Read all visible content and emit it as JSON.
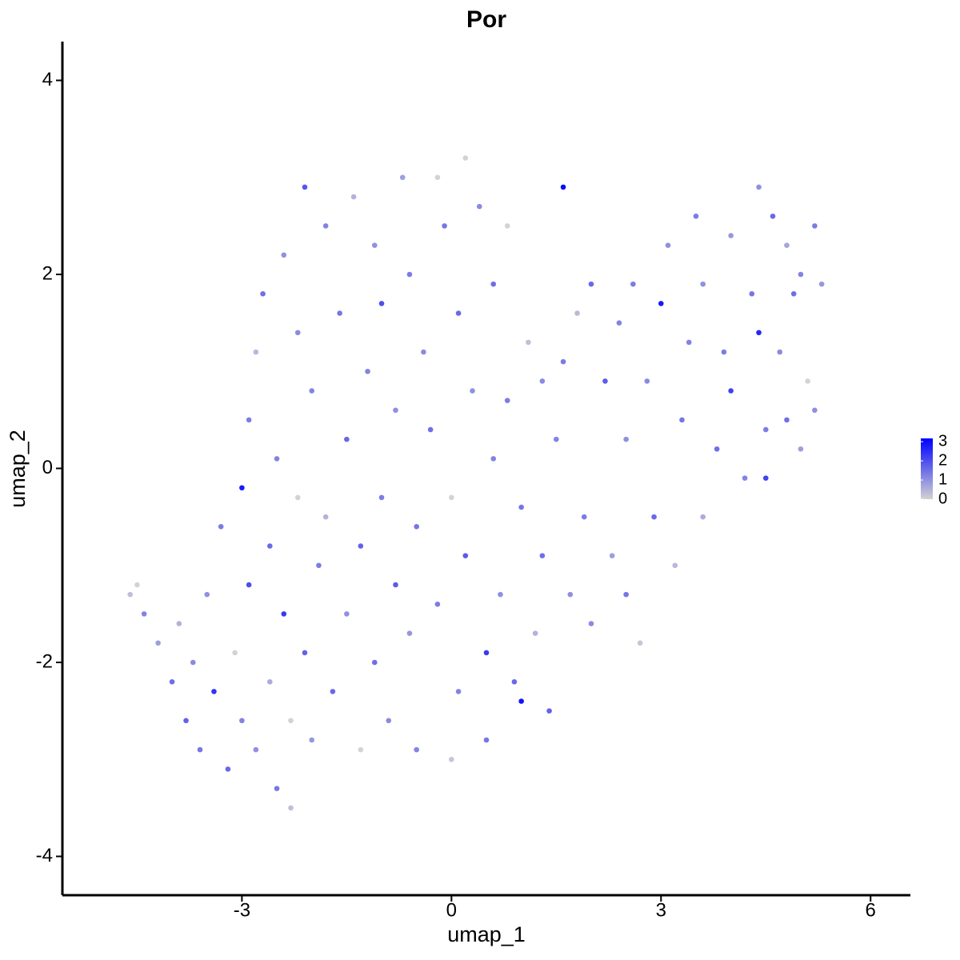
{
  "chart_data": {
    "type": "scatter",
    "title": "Por",
    "x_label": "umap_1",
    "y_label": "umap_2",
    "xlim": [
      -5.57,
      6.57
    ],
    "xticks": [
      -3,
      0,
      3,
      6
    ],
    "ylim": [
      -4.4,
      4.4
    ],
    "yticks": [
      -4,
      -2,
      0,
      2,
      4
    ],
    "color_low": "#d3d3d3",
    "color_high": "#0000ff",
    "colorlim": [
      0,
      3.17
    ],
    "colorticks": [
      0,
      1,
      2,
      3
    ],
    "series": [
      {
        "x": [
          -4.6,
          -4.5,
          -4.4,
          -4.2,
          -4.0,
          -3.9,
          -3.8,
          -3.7,
          -3.6,
          -3.5,
          -3.4,
          -3.3,
          -3.2,
          -3.1,
          -3.0,
          -3.0,
          -2.9,
          -2.9,
          -2.8,
          -2.8,
          -2.7,
          -2.6,
          -2.6,
          -2.5,
          -2.5,
          -2.4,
          -2.4,
          -2.3,
          -2.3,
          -2.2,
          -2.2,
          -2.1,
          -2.1,
          -2.0,
          -2.0,
          -1.9,
          -1.8,
          -1.8,
          -1.7,
          -1.6,
          -1.5,
          -1.5,
          -1.4,
          -1.3,
          -1.3,
          -1.2,
          -1.1,
          -1.1,
          -1.0,
          -1.0,
          -0.9,
          -0.8,
          -0.8,
          -0.7,
          -0.6,
          -0.6,
          -0.5,
          -0.5,
          -0.4,
          -0.3,
          -0.2,
          -0.2,
          -0.1,
          0.0,
          0.0,
          0.1,
          0.1,
          0.2,
          0.2,
          0.3,
          0.4,
          0.5,
          0.5,
          0.6,
          0.6,
          0.7,
          0.8,
          0.8,
          0.9,
          1.0,
          1.0,
          1.1,
          1.2,
          1.3,
          1.3,
          1.4,
          1.5,
          1.6,
          1.6,
          1.7,
          1.8,
          1.9,
          2.0,
          2.0,
          2.2,
          2.3,
          2.4,
          2.5,
          2.5,
          2.6,
          2.7,
          2.8,
          2.9,
          3.0,
          3.1,
          3.2,
          3.3,
          3.4,
          3.5,
          3.6,
          3.6,
          3.8,
          3.9,
          4.0,
          4.0,
          4.2,
          4.3,
          4.4,
          4.4,
          4.5,
          4.5,
          4.6,
          4.7,
          4.8,
          4.8,
          4.9,
          5.0,
          5.0,
          5.1,
          5.2,
          5.3,
          5.2
        ],
        "values": [
          -1.3,
          -1.2,
          -1.5,
          -1.8,
          -2.2,
          -1.6,
          -2.6,
          -2.0,
          -2.9,
          -1.3,
          -2.3,
          -0.6,
          -3.1,
          -1.9,
          -0.2,
          -2.6,
          0.5,
          -1.2,
          -2.9,
          1.2,
          1.8,
          -0.8,
          -2.2,
          0.1,
          -3.3,
          -1.5,
          2.2,
          -2.6,
          -3.5,
          1.4,
          -0.3,
          2.9,
          -1.9,
          0.8,
          -2.8,
          -1.0,
          2.5,
          -0.5,
          -2.3,
          1.6,
          -1.5,
          0.3,
          2.8,
          -2.9,
          -0.8,
          1.0,
          -2.0,
          2.3,
          -0.3,
          1.7,
          -2.6,
          0.6,
          -1.2,
          3.0,
          2.0,
          -1.7,
          -0.6,
          -2.9,
          1.2,
          0.4,
          3.0,
          -1.4,
          2.5,
          -0.3,
          -3.0,
          1.6,
          -2.3,
          3.2,
          -0.9,
          0.8,
          2.7,
          -1.9,
          -2.8,
          0.1,
          1.9,
          -1.3,
          2.5,
          0.7,
          -2.2,
          -2.4,
          -0.4,
          1.3,
          -1.7,
          0.9,
          -0.9,
          -2.5,
          0.3,
          2.9,
          1.1,
          -1.3,
          1.6,
          -0.5,
          1.9,
          -1.6,
          0.9,
          -0.9,
          1.5,
          -1.3,
          0.3,
          1.9,
          -1.8,
          0.9,
          -0.5,
          1.7,
          2.3,
          -1.0,
          0.5,
          1.3,
          2.6,
          -0.5,
          1.9,
          0.2,
          1.2,
          2.4,
          0.8,
          -0.1,
          1.8,
          1.4,
          2.9,
          0.4,
          -0.1,
          2.6,
          1.2,
          0.5,
          2.3,
          1.8,
          0.2,
          2.0,
          0.9,
          2.5,
          1.9,
          0.6
        ],
        "expression": [
          0.3,
          0,
          1.2,
          0.8,
          1.5,
          0.5,
          1.7,
          1.1,
          1.4,
          1.0,
          2.4,
          1.3,
          1.6,
          0,
          2.8,
          1.2,
          1.3,
          2.0,
          1.0,
          0.4,
          1.5,
          1.6,
          0.6,
          1.2,
          1.4,
          2.3,
          1.0,
          0,
          0.3,
          1.1,
          0,
          1.9,
          1.7,
          1.2,
          0.9,
          1.3,
          1.2,
          0.5,
          1.6,
          1.4,
          1.0,
          1.6,
          0.5,
          0,
          1.7,
          1.2,
          1.5,
          1.0,
          1.3,
          2.0,
          1.1,
          1.0,
          1.8,
          0.8,
          1.3,
          0.9,
          1.4,
          1.2,
          1.1,
          1.5,
          0,
          1.3,
          1.4,
          0,
          0.2,
          1.6,
          1.2,
          0,
          1.8,
          1.0,
          1.1,
          2.3,
          1.4,
          1.2,
          1.5,
          1.0,
          0,
          1.3,
          1.6,
          2.9,
          1.4,
          0.3,
          0.5,
          1.1,
          1.5,
          1.7,
          1.2,
          3.0,
          1.3,
          1.0,
          0.4,
          1.3,
          1.6,
          1.1,
          1.8,
          0.8,
          1.2,
          1.4,
          1.0,
          1.3,
          0.2,
          1.1,
          1.6,
          2.8,
          1.0,
          0.4,
          1.4,
          1.2,
          1.3,
          0.6,
          1.0,
          1.5,
          1.3,
          0.9,
          2.2,
          1.2,
          1.4,
          2.6,
          1.0,
          1.3,
          2.2,
          1.6,
          1.1,
          1.5,
          0.7,
          1.5,
          0.8,
          1.2,
          0,
          1.3,
          0.9,
          1.0
        ]
      }
    ]
  }
}
